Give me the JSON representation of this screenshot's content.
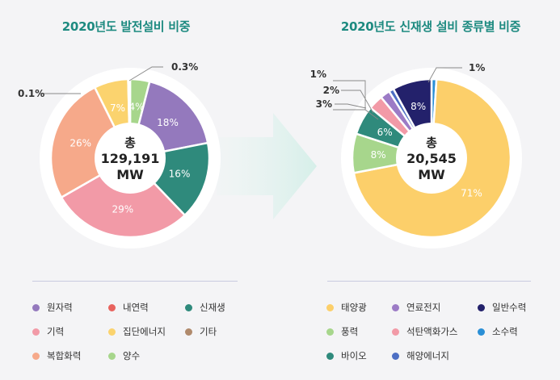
{
  "chart_data": [
    {
      "type": "pie",
      "title": "2020년도 발전설비 비중",
      "center_label": [
        "총",
        "129,191",
        "MW"
      ],
      "slices": [
        {
          "name": "양수",
          "value": 4,
          "label": "4%",
          "color": "#a7d68c"
        },
        {
          "name": "원자력",
          "value": 18,
          "label": "18%",
          "color": "#9479bd"
        },
        {
          "name": "신재생",
          "value": 16,
          "label": "16%",
          "color": "#2f8a7c"
        },
        {
          "name": "기력",
          "value": 29,
          "label": "29%",
          "color": "#f29aa7"
        },
        {
          "name": "복합화력",
          "value": 26,
          "label": "26%",
          "color": "#f6a98a"
        },
        {
          "name": "집단에너지",
          "value": 7,
          "label": "7%",
          "color": "#fbd36e"
        },
        {
          "name": "내연력",
          "value": 0.1,
          "label": "0.1%",
          "color": "#e8635e"
        },
        {
          "name": "기타",
          "value": 0.3,
          "label": "0.3%",
          "color": "#b08a6c"
        }
      ]
    },
    {
      "type": "pie",
      "title": "2020년도 신재생 설비 종류별 비중",
      "center_label": [
        "총",
        "20,545",
        "MW"
      ],
      "slices": [
        {
          "name": "소수력",
          "value": 1,
          "label": "1%",
          "color": "#2a8fd6"
        },
        {
          "name": "태양광",
          "value": 71,
          "label": "71%",
          "color": "#fccf6a"
        },
        {
          "name": "풍력",
          "value": 8,
          "label": "8%",
          "color": "#a7d68c"
        },
        {
          "name": "바이오",
          "value": 6,
          "label": "6%",
          "color": "#2f8a7c"
        },
        {
          "name": "석탄액화가스",
          "value": 3,
          "label": "3%",
          "color": "#f29aa7"
        },
        {
          "name": "연료전지",
          "value": 2,
          "label": "2%",
          "color": "#9c7bc6"
        },
        {
          "name": "해양에너지",
          "value": 1,
          "label": "1%",
          "color": "#4d6fc4"
        },
        {
          "name": "일반수력",
          "value": 8,
          "label": "8%",
          "color": "#23216b"
        }
      ]
    }
  ],
  "legend_left": [
    "원자력",
    "내연력",
    "신재생",
    "기력",
    "집단에너지",
    "기타",
    "복합화력",
    "양수"
  ],
  "legend_right": [
    "태양광",
    "연료전지",
    "일반수력",
    "풍력",
    "석탄액화가스",
    "소수력",
    "바이오",
    "해양에너지"
  ]
}
